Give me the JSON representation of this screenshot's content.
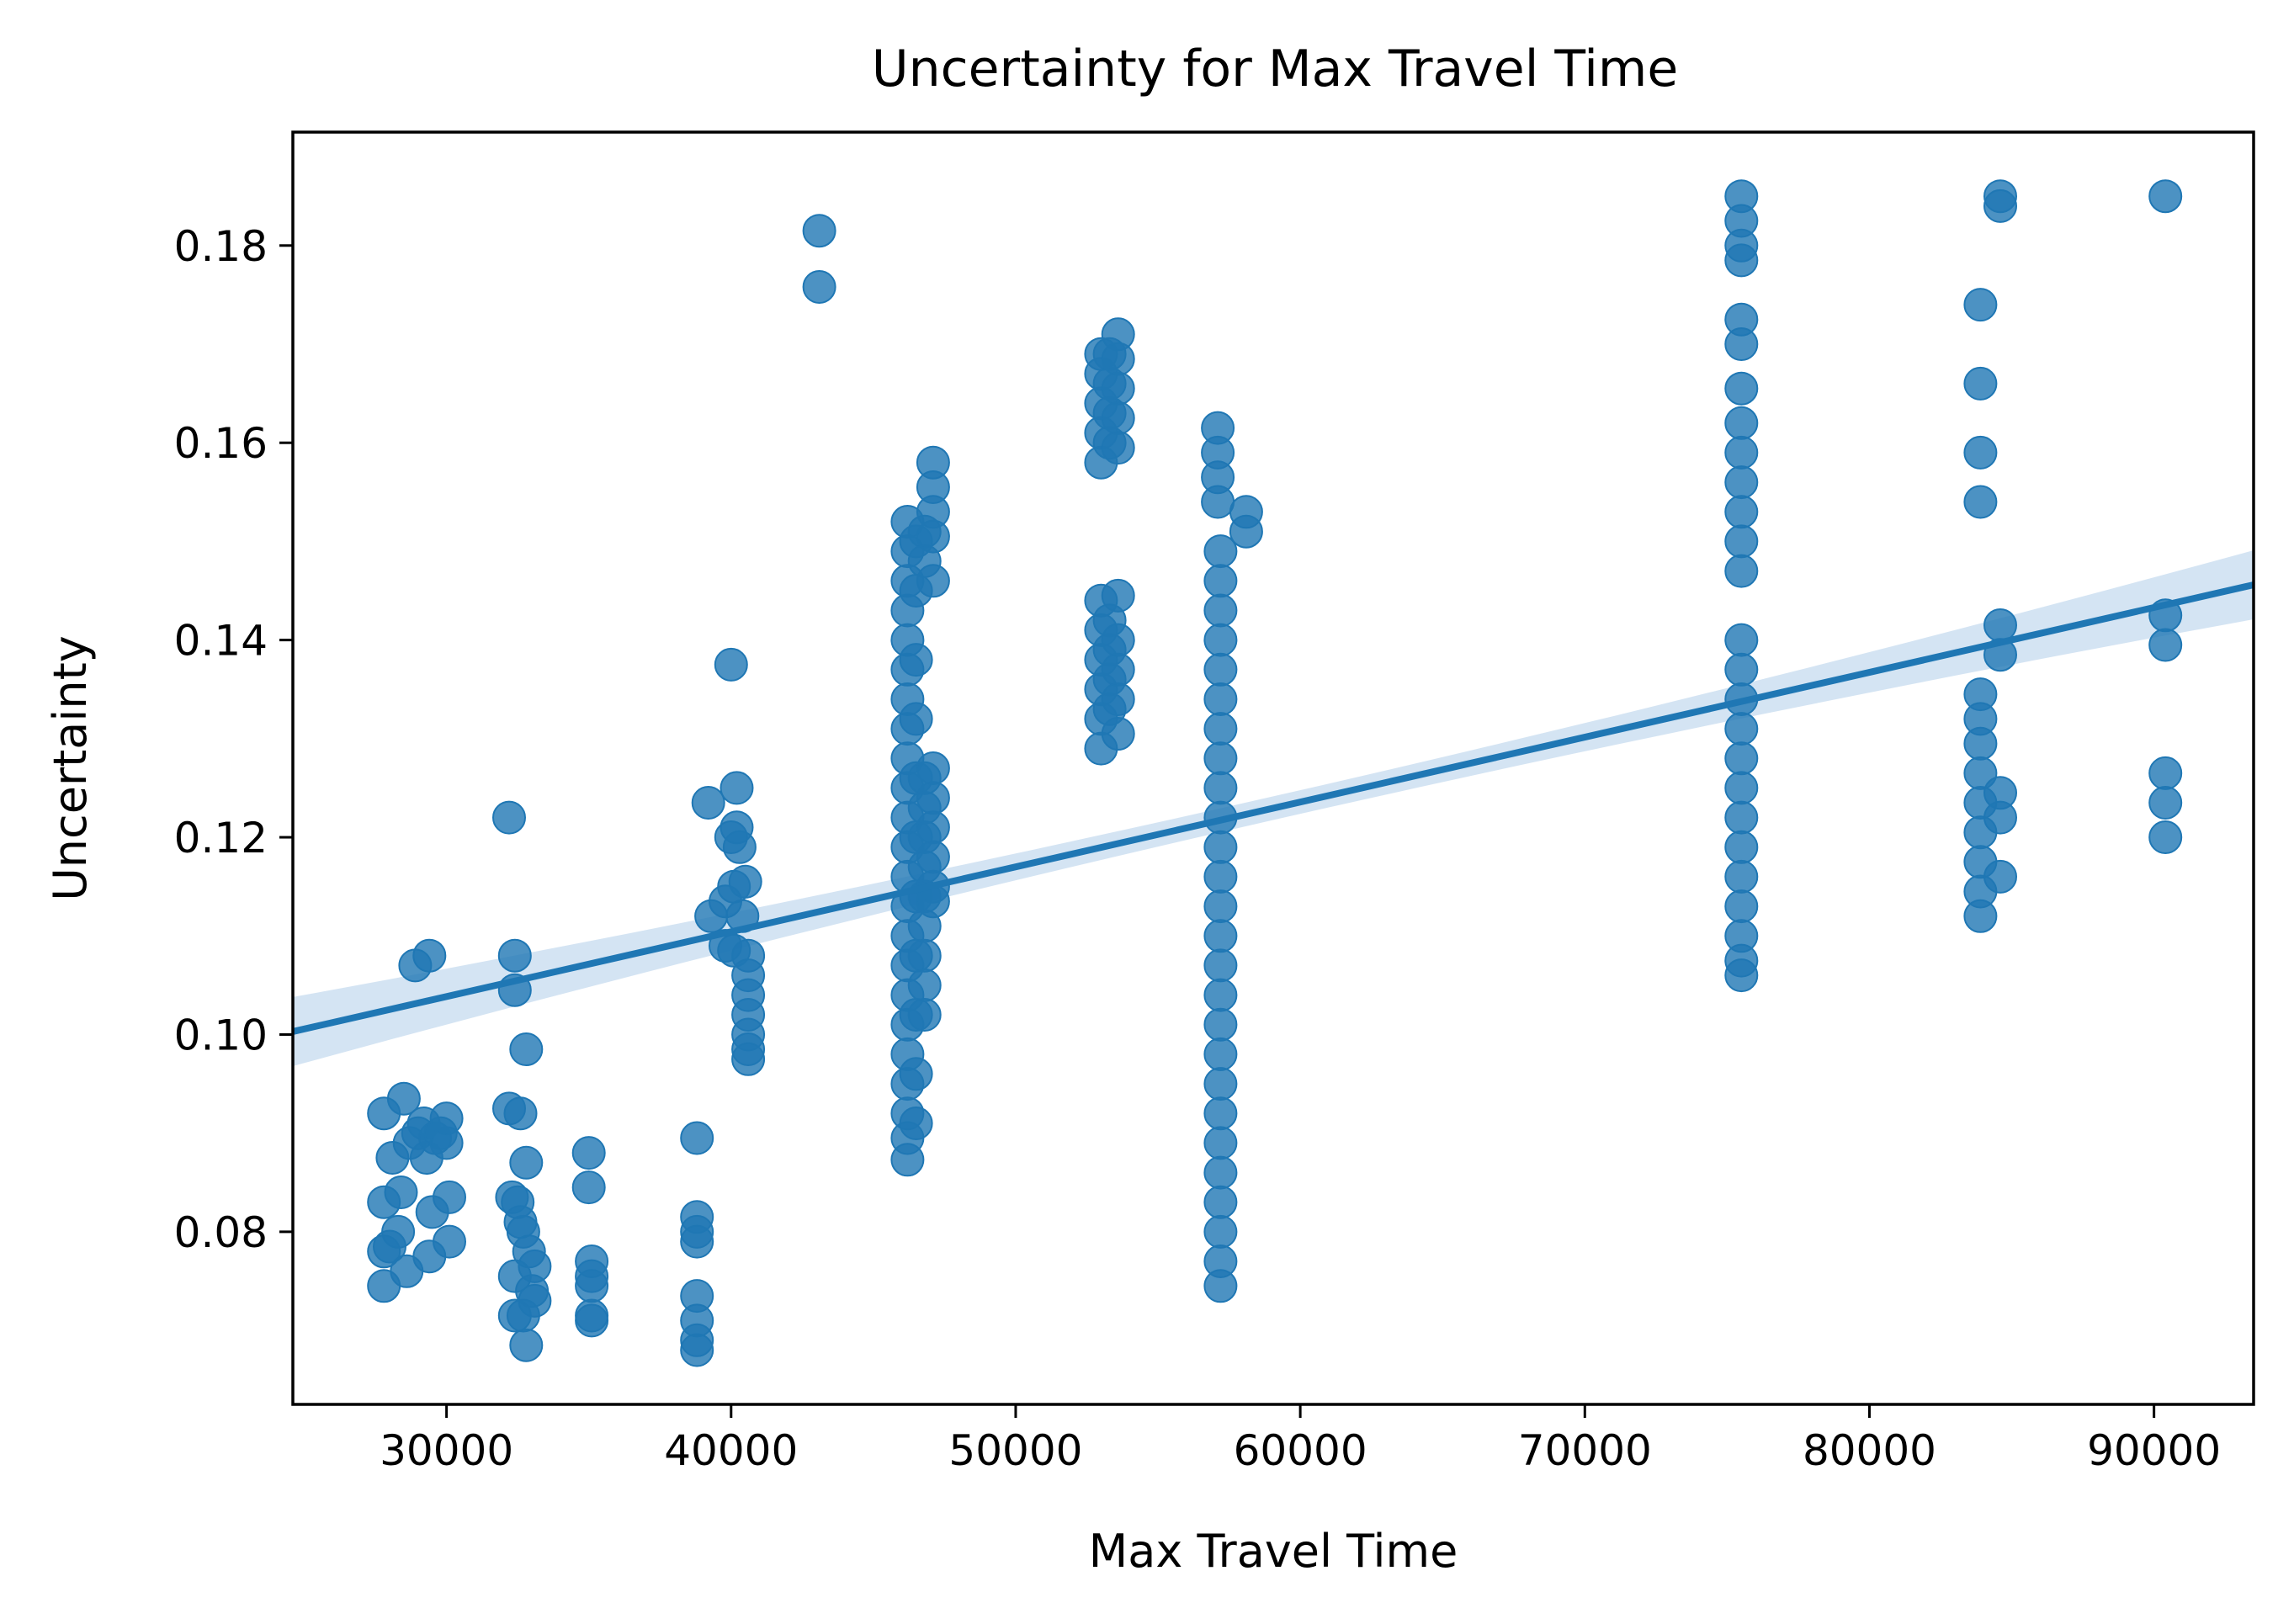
{
  "chart_data": {
    "type": "scatter",
    "title": "Uncertainty for Max Travel Time",
    "xlabel": "Max Travel Time",
    "ylabel": "Uncertainty",
    "xlim": [
      24600,
      93500
    ],
    "ylim": [
      0.0625,
      0.1915
    ],
    "xticks": [
      30000,
      40000,
      50000,
      60000,
      70000,
      80000,
      90000
    ],
    "xtick_labels": [
      "30000",
      "40000",
      "50000",
      "60000",
      "70000",
      "80000",
      "90000"
    ],
    "yticks": [
      0.08,
      0.1,
      0.12,
      0.14,
      0.16,
      0.18
    ],
    "ytick_labels": [
      "0.08",
      "0.10",
      "0.12",
      "0.14",
      "0.16",
      "0.18"
    ],
    "grid": false,
    "legend": "none",
    "colors": {
      "points": "#1f77b4",
      "line": "#1f77b4",
      "band": "#c6dbef"
    },
    "regression": {
      "x": [
        24600,
        93500
      ],
      "y": [
        0.1003,
        0.1456
      ],
      "ci_halfwidth_ends": 0.0035,
      "ci_halfwidth_mid": 0.0012
    },
    "points": [
      [
        27800,
        0.0745
      ],
      [
        27800,
        0.078
      ],
      [
        27800,
        0.083
      ],
      [
        27800,
        0.092
      ],
      [
        28000,
        0.0785
      ],
      [
        28100,
        0.0875
      ],
      [
        28300,
        0.08
      ],
      [
        28400,
        0.084
      ],
      [
        28500,
        0.0935
      ],
      [
        28600,
        0.076
      ],
      [
        28700,
        0.089
      ],
      [
        28900,
        0.107
      ],
      [
        29000,
        0.09
      ],
      [
        29200,
        0.091
      ],
      [
        29300,
        0.0875
      ],
      [
        29400,
        0.108
      ],
      [
        29400,
        0.0775
      ],
      [
        29500,
        0.082
      ],
      [
        29600,
        0.0895
      ],
      [
        29800,
        0.09
      ],
      [
        30000,
        0.089
      ],
      [
        30000,
        0.0915
      ],
      [
        30100,
        0.0835
      ],
      [
        30100,
        0.079
      ],
      [
        32200,
        0.122
      ],
      [
        32200,
        0.0925
      ],
      [
        32300,
        0.0835
      ],
      [
        32400,
        0.108
      ],
      [
        32400,
        0.1045
      ],
      [
        32400,
        0.0755
      ],
      [
        32400,
        0.0715
      ],
      [
        32500,
        0.083
      ],
      [
        32600,
        0.092
      ],
      [
        32600,
        0.081
      ],
      [
        32700,
        0.08
      ],
      [
        32700,
        0.0715
      ],
      [
        32800,
        0.0985
      ],
      [
        32800,
        0.087
      ],
      [
        32800,
        0.0685
      ],
      [
        32900,
        0.078
      ],
      [
        33000,
        0.074
      ],
      [
        33100,
        0.0765
      ],
      [
        33100,
        0.073
      ],
      [
        35000,
        0.088
      ],
      [
        35000,
        0.0845
      ],
      [
        35100,
        0.077
      ],
      [
        35100,
        0.0755
      ],
      [
        35100,
        0.0745
      ],
      [
        35100,
        0.0715
      ],
      [
        35100,
        0.071
      ],
      [
        38800,
        0.0895
      ],
      [
        38800,
        0.0815
      ],
      [
        38800,
        0.08
      ],
      [
        38800,
        0.079
      ],
      [
        38800,
        0.0735
      ],
      [
        38800,
        0.071
      ],
      [
        38800,
        0.069
      ],
      [
        38800,
        0.068
      ],
      [
        39200,
        0.1235
      ],
      [
        39300,
        0.112
      ],
      [
        39800,
        0.1135
      ],
      [
        39800,
        0.109
      ],
      [
        40000,
        0.1375
      ],
      [
        40000,
        0.12
      ],
      [
        40100,
        0.115
      ],
      [
        40100,
        0.1085
      ],
      [
        40200,
        0.125
      ],
      [
        40200,
        0.121
      ],
      [
        40300,
        0.119
      ],
      [
        40400,
        0.112
      ],
      [
        40500,
        0.1155
      ],
      [
        40600,
        0.108
      ],
      [
        40600,
        0.106
      ],
      [
        40600,
        0.104
      ],
      [
        40600,
        0.102
      ],
      [
        40600,
        0.1
      ],
      [
        40600,
        0.0985
      ],
      [
        40600,
        0.0975
      ],
      [
        43100,
        0.1815
      ],
      [
        43100,
        0.1758
      ],
      [
        46200,
        0.152
      ],
      [
        46200,
        0.149
      ],
      [
        46200,
        0.146
      ],
      [
        46200,
        0.143
      ],
      [
        46200,
        0.14
      ],
      [
        46200,
        0.137
      ],
      [
        46200,
        0.134
      ],
      [
        46200,
        0.131
      ],
      [
        46200,
        0.128
      ],
      [
        46200,
        0.125
      ],
      [
        46200,
        0.122
      ],
      [
        46200,
        0.119
      ],
      [
        46200,
        0.116
      ],
      [
        46200,
        0.113
      ],
      [
        46200,
        0.11
      ],
      [
        46200,
        0.107
      ],
      [
        46200,
        0.104
      ],
      [
        46200,
        0.101
      ],
      [
        46200,
        0.098
      ],
      [
        46200,
        0.095
      ],
      [
        46200,
        0.092
      ],
      [
        46200,
        0.0895
      ],
      [
        46200,
        0.0873
      ],
      [
        46500,
        0.15
      ],
      [
        46500,
        0.145
      ],
      [
        46500,
        0.138
      ],
      [
        46500,
        0.132
      ],
      [
        46500,
        0.126
      ],
      [
        46500,
        0.12
      ],
      [
        46500,
        0.114
      ],
      [
        46500,
        0.108
      ],
      [
        46500,
        0.102
      ],
      [
        46500,
        0.096
      ],
      [
        46500,
        0.091
      ],
      [
        46800,
        0.151
      ],
      [
        46800,
        0.148
      ],
      [
        46800,
        0.126
      ],
      [
        46800,
        0.123
      ],
      [
        46800,
        0.12
      ],
      [
        46800,
        0.117
      ],
      [
        46800,
        0.114
      ],
      [
        46800,
        0.111
      ],
      [
        46800,
        0.108
      ],
      [
        46800,
        0.105
      ],
      [
        46800,
        0.102
      ],
      [
        47100,
        0.158
      ],
      [
        47100,
        0.1555
      ],
      [
        47100,
        0.153
      ],
      [
        47100,
        0.1505
      ],
      [
        47100,
        0.146
      ],
      [
        47100,
        0.127
      ],
      [
        47100,
        0.124
      ],
      [
        47100,
        0.121
      ],
      [
        47100,
        0.118
      ],
      [
        47100,
        0.115
      ],
      [
        47100,
        0.1135
      ],
      [
        53000,
        0.169
      ],
      [
        53000,
        0.167
      ],
      [
        53000,
        0.164
      ],
      [
        53000,
        0.161
      ],
      [
        53000,
        0.158
      ],
      [
        53000,
        0.144
      ],
      [
        53000,
        0.141
      ],
      [
        53000,
        0.138
      ],
      [
        53000,
        0.135
      ],
      [
        53000,
        0.132
      ],
      [
        53000,
        0.129
      ],
      [
        53300,
        0.169
      ],
      [
        53300,
        0.166
      ],
      [
        53300,
        0.163
      ],
      [
        53300,
        0.16
      ],
      [
        53300,
        0.142
      ],
      [
        53300,
        0.139
      ],
      [
        53300,
        0.136
      ],
      [
        53300,
        0.133
      ],
      [
        53600,
        0.171
      ],
      [
        53600,
        0.1685
      ],
      [
        53600,
        0.1655
      ],
      [
        53600,
        0.1625
      ],
      [
        53600,
        0.1595
      ],
      [
        53600,
        0.1445
      ],
      [
        53600,
        0.14
      ],
      [
        53600,
        0.137
      ],
      [
        53600,
        0.134
      ],
      [
        53600,
        0.1305
      ],
      [
        57100,
        0.1615
      ],
      [
        57100,
        0.159
      ],
      [
        57100,
        0.1565
      ],
      [
        57100,
        0.154
      ],
      [
        57200,
        0.149
      ],
      [
        57200,
        0.146
      ],
      [
        57200,
        0.143
      ],
      [
        57200,
        0.14
      ],
      [
        57200,
        0.137
      ],
      [
        57200,
        0.134
      ],
      [
        57200,
        0.131
      ],
      [
        57200,
        0.128
      ],
      [
        57200,
        0.125
      ],
      [
        57200,
        0.122
      ],
      [
        57200,
        0.119
      ],
      [
        57200,
        0.116
      ],
      [
        57200,
        0.113
      ],
      [
        57200,
        0.11
      ],
      [
        57200,
        0.107
      ],
      [
        57200,
        0.104
      ],
      [
        57200,
        0.101
      ],
      [
        57200,
        0.098
      ],
      [
        57200,
        0.095
      ],
      [
        57200,
        0.092
      ],
      [
        57200,
        0.089
      ],
      [
        57200,
        0.086
      ],
      [
        57200,
        0.083
      ],
      [
        57200,
        0.08
      ],
      [
        57200,
        0.077
      ],
      [
        57200,
        0.0745
      ],
      [
        58100,
        0.153
      ],
      [
        58100,
        0.151
      ],
      [
        75500,
        0.185
      ],
      [
        75500,
        0.1825
      ],
      [
        75500,
        0.18
      ],
      [
        75500,
        0.1785
      ],
      [
        75500,
        0.1725
      ],
      [
        75500,
        0.17
      ],
      [
        75500,
        0.1655
      ],
      [
        75500,
        0.162
      ],
      [
        75500,
        0.159
      ],
      [
        75500,
        0.156
      ],
      [
        75500,
        0.153
      ],
      [
        75500,
        0.15
      ],
      [
        75500,
        0.147
      ],
      [
        75500,
        0.14
      ],
      [
        75500,
        0.137
      ],
      [
        75500,
        0.134
      ],
      [
        75500,
        0.131
      ],
      [
        75500,
        0.128
      ],
      [
        75500,
        0.125
      ],
      [
        75500,
        0.122
      ],
      [
        75500,
        0.119
      ],
      [
        75500,
        0.116
      ],
      [
        75500,
        0.113
      ],
      [
        75500,
        0.11
      ],
      [
        75500,
        0.1075
      ],
      [
        75500,
        0.106
      ],
      [
        83900,
        0.174
      ],
      [
        83900,
        0.166
      ],
      [
        83900,
        0.159
      ],
      [
        83900,
        0.154
      ],
      [
        83900,
        0.1345
      ],
      [
        83900,
        0.132
      ],
      [
        83900,
        0.1295
      ],
      [
        83900,
        0.1265
      ],
      [
        83900,
        0.1235
      ],
      [
        83900,
        0.1205
      ],
      [
        83900,
        0.1175
      ],
      [
        83900,
        0.1145
      ],
      [
        83900,
        0.112
      ],
      [
        84600,
        0.185
      ],
      [
        84600,
        0.184
      ],
      [
        84600,
        0.1415
      ],
      [
        84600,
        0.1385
      ],
      [
        84600,
        0.1245
      ],
      [
        84600,
        0.122
      ],
      [
        84600,
        0.116
      ],
      [
        90400,
        0.185
      ],
      [
        90400,
        0.1425
      ],
      [
        90400,
        0.1395
      ],
      [
        90400,
        0.1265
      ],
      [
        90400,
        0.1235
      ],
      [
        90400,
        0.12
      ]
    ]
  }
}
